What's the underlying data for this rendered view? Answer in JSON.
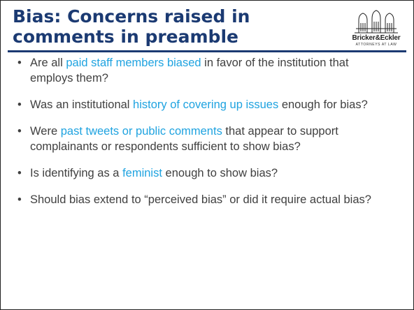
{
  "header": {
    "title": "Bias: Concerns raised in comments in preamble",
    "logo": {
      "name": "Bricker&Eckler",
      "tagline": "ATTORNEYS AT LAW"
    }
  },
  "bullets": [
    {
      "before": "Are all ",
      "highlight": "paid staff members biased",
      "after": " in favor of the institution that employs them?"
    },
    {
      "before": "Was an institutional ",
      "highlight": "history of covering up issues",
      "after": " enough for bias?"
    },
    {
      "before": "Were ",
      "highlight": "past tweets or public comments",
      "after": " that appear to support complainants or respondents sufficient to show bias?"
    },
    {
      "before": "Is identifying as a ",
      "highlight": "feminist",
      "after": " enough to show bias?"
    },
    {
      "text": "Should bias extend to “perceived bias” or did it require actual bias?"
    }
  ]
}
